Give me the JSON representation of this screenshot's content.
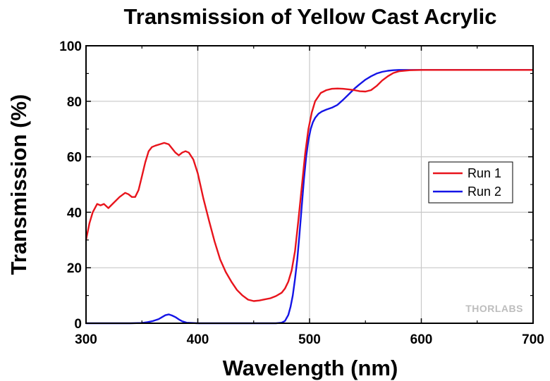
{
  "chart_data": {
    "type": "line",
    "title": "Transmission of Yellow Cast Acrylic",
    "xlabel": "Wavelength (nm)",
    "ylabel": "Transmission (%)",
    "xlim": [
      300,
      700
    ],
    "ylim": [
      0,
      100
    ],
    "xticks": [
      300,
      400,
      500,
      600,
      700
    ],
    "yticks": [
      0,
      20,
      40,
      60,
      80,
      100
    ],
    "grid": true,
    "legend_position": "right",
    "watermark": "THORLABS",
    "series": [
      {
        "name": "Run 1",
        "color": "#e8141c",
        "x": [
          300,
          303,
          306,
          310,
          313,
          316,
          320,
          325,
          330,
          335,
          338,
          341,
          344,
          347,
          350,
          353,
          356,
          359,
          362,
          366,
          370,
          374,
          377,
          380,
          383,
          386,
          389,
          392,
          396,
          400,
          405,
          410,
          415,
          420,
          425,
          430,
          435,
          440,
          445,
          450,
          455,
          460,
          465,
          470,
          475,
          478,
          481,
          484,
          487,
          490,
          493,
          496,
          499,
          502,
          505,
          510,
          515,
          520,
          525,
          530,
          535,
          540,
          545,
          550,
          555,
          560,
          565,
          570,
          575,
          580,
          590,
          600,
          620,
          650,
          680,
          700
        ],
        "y": [
          30,
          36,
          40,
          43,
          42.5,
          43,
          41.5,
          43.5,
          45.5,
          47,
          46.5,
          45.5,
          45.5,
          48,
          53,
          58,
          62,
          63.5,
          64,
          64.5,
          65,
          64.5,
          63,
          61.5,
          60.5,
          61.5,
          62,
          61.5,
          59,
          54,
          45,
          37,
          29.5,
          23,
          18.5,
          15,
          12,
          10,
          8.5,
          8,
          8.2,
          8.6,
          9,
          9.8,
          11,
          12.5,
          15,
          19,
          26,
          37,
          49,
          61,
          70,
          76,
          80,
          83,
          84,
          84.5,
          84.6,
          84.5,
          84.3,
          84,
          83.6,
          83.5,
          84,
          85.5,
          87.5,
          89,
          90.2,
          90.8,
          91.2,
          91.3,
          91.3,
          91.3,
          91.3,
          91.3
        ]
      },
      {
        "name": "Run 2",
        "color": "#1414e6",
        "x": [
          300,
          310,
          320,
          330,
          340,
          350,
          355,
          360,
          365,
          368,
          371,
          374,
          377,
          380,
          383,
          386,
          390,
          400,
          420,
          440,
          460,
          470,
          475,
          478,
          481,
          483,
          485,
          487,
          489,
          491,
          493,
          495,
          497,
          499,
          501,
          503,
          505,
          508,
          511,
          515,
          520,
          525,
          530,
          535,
          540,
          545,
          550,
          555,
          560,
          565,
          570,
          575,
          580,
          585,
          590,
          600,
          620,
          650,
          700
        ],
        "y": [
          0,
          0,
          0,
          0,
          0,
          0.1,
          0.4,
          0.8,
          1.5,
          2.2,
          2.9,
          3.2,
          2.8,
          2.2,
          1.4,
          0.7,
          0.2,
          0,
          0,
          0,
          0,
          0,
          0.2,
          0.8,
          3,
          6,
          10,
          16,
          23,
          32,
          42,
          52,
          60,
          66,
          70,
          72.5,
          74,
          75.5,
          76.3,
          77,
          77.7,
          78.7,
          80.5,
          82.5,
          84.5,
          86.2,
          87.8,
          89,
          90,
          90.6,
          91,
          91.2,
          91.3,
          91.3,
          91.3,
          91.3,
          91.3,
          91.3,
          91.3
        ]
      }
    ]
  }
}
